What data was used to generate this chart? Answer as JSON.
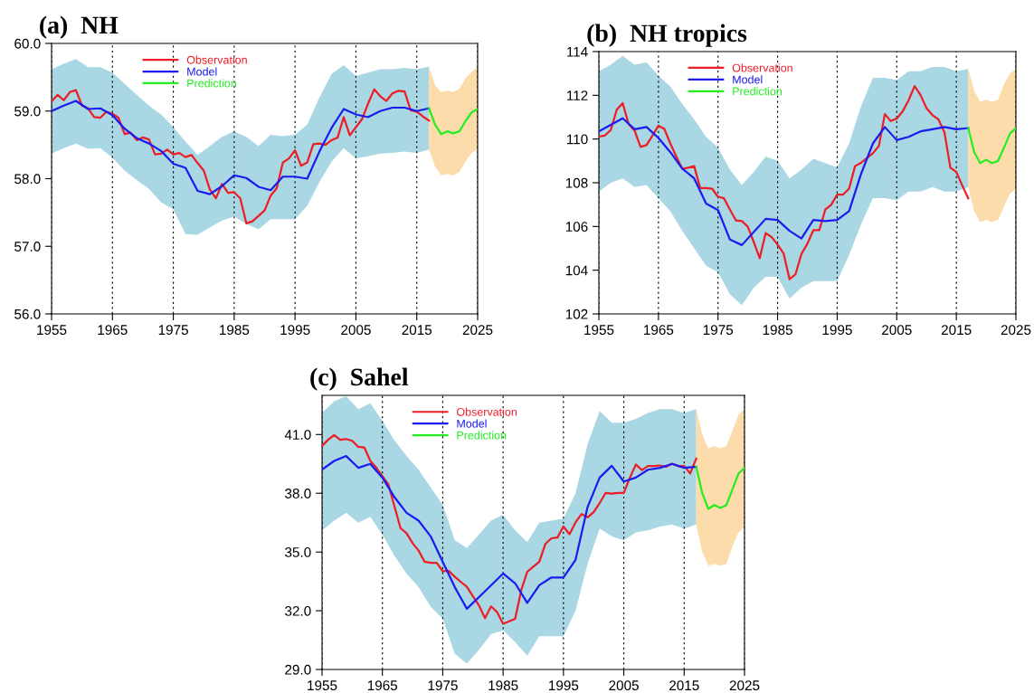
{
  "chart_data": [
    {
      "type": "line",
      "title": "(a)  NH",
      "xlim": [
        1955,
        2025
      ],
      "xticks": [
        1955,
        1965,
        1975,
        1985,
        1995,
        2005,
        2015,
        2025
      ],
      "ylim": [
        56,
        60
      ],
      "yticks": [
        {
          "value": 56,
          "label": "56.0"
        },
        {
          "value": 57,
          "label": "57.0"
        },
        {
          "value": 58,
          "label": "58.0"
        },
        {
          "value": 59,
          "label": "59.0"
        },
        {
          "value": 60,
          "label": "60.0"
        }
      ],
      "grid": "x",
      "legend": "top",
      "line_style": "solid",
      "series": [
        {
          "name": "Observation",
          "color": "#ee1c25",
          "x": [
            1955,
            1956,
            1957,
            1958,
            1959,
            1960,
            1961,
            1962,
            1963,
            1964,
            1965,
            1966,
            1967,
            1968,
            1969,
            1970,
            1971,
            1972,
            1973,
            1974,
            1975,
            1976,
            1977,
            1978,
            1979,
            1980,
            1981,
            1982,
            1983,
            1984,
            1985,
            1986,
            1987,
            1988,
            1989,
            1990,
            1991,
            1992,
            1993,
            1994,
            1995,
            1996,
            1997,
            1998,
            1999,
            2000,
            2001,
            2002,
            2003,
            2004,
            2005,
            2006,
            2007,
            2008,
            2009,
            2010,
            2011,
            2012,
            2013,
            2014,
            2015,
            2016,
            2017
          ],
          "values": [
            59.14,
            59.24,
            59.16,
            59.28,
            59.31,
            59.08,
            59.04,
            58.91,
            58.9,
            58.99,
            58.96,
            58.9,
            58.66,
            58.68,
            58.57,
            58.61,
            58.58,
            58.36,
            58.37,
            58.43,
            58.36,
            58.38,
            58.32,
            58.35,
            58.23,
            58.12,
            57.84,
            57.71,
            57.92,
            57.79,
            57.8,
            57.71,
            57.34,
            57.37,
            57.45,
            57.53,
            57.75,
            57.86,
            58.24,
            58.3,
            58.42,
            58.19,
            58.24,
            58.51,
            58.52,
            58.5,
            58.57,
            58.61,
            58.91,
            58.64,
            58.76,
            58.88,
            59.11,
            59.32,
            59.22,
            59.15,
            59.26,
            59.3,
            59.29,
            59.01,
            58.99,
            58.92,
            58.86
          ]
        },
        {
          "name": "Model",
          "color": "#1b1bf0",
          "x": [
            1955,
            1957,
            1959,
            1961,
            1963,
            1965,
            1967,
            1969,
            1971,
            1973,
            1975,
            1977,
            1979,
            1981,
            1983,
            1985,
            1987,
            1989,
            1991,
            1993,
            1995,
            1997,
            1999,
            2001,
            2003,
            2005,
            2007,
            2009,
            2011,
            2013,
            2015,
            2017
          ],
          "values": [
            59.0,
            59.08,
            59.15,
            59.03,
            59.04,
            58.94,
            58.74,
            58.6,
            58.52,
            58.41,
            58.22,
            58.16,
            57.82,
            57.77,
            57.89,
            58.05,
            58.01,
            57.88,
            57.83,
            58.03,
            58.03,
            58.0,
            58.4,
            58.75,
            59.03,
            58.95,
            58.91,
            59.0,
            59.05,
            59.05,
            59.0,
            59.04
          ],
          "upper": [
            59.62,
            59.7,
            59.77,
            59.65,
            59.65,
            59.57,
            59.4,
            59.24,
            59.08,
            58.95,
            58.76,
            58.55,
            58.35,
            58.48,
            58.62,
            58.7,
            58.62,
            58.48,
            58.65,
            58.63,
            58.65,
            58.8,
            59.2,
            59.55,
            59.68,
            59.52,
            59.57,
            59.62,
            59.62,
            59.64,
            59.62,
            59.66
          ],
          "lower": [
            58.37,
            58.45,
            58.52,
            58.44,
            58.45,
            58.31,
            58.12,
            57.98,
            57.85,
            57.65,
            57.55,
            57.18,
            57.17,
            57.28,
            57.38,
            57.44,
            57.33,
            57.25,
            57.4,
            57.4,
            57.4,
            57.6,
            57.95,
            58.25,
            58.45,
            58.3,
            58.33,
            58.37,
            58.38,
            58.4,
            58.38,
            58.43
          ]
        },
        {
          "name": "Prediction",
          "color": "#22ee22",
          "x": [
            2017,
            2018,
            2019,
            2020,
            2021,
            2022,
            2023,
            2024,
            2025
          ],
          "values": [
            59.04,
            58.8,
            58.66,
            58.7,
            58.67,
            58.7,
            58.85,
            58.98,
            59.03
          ],
          "upper": [
            59.66,
            59.38,
            59.28,
            59.3,
            59.28,
            59.33,
            59.48,
            59.58,
            59.65
          ],
          "lower": [
            58.43,
            58.18,
            58.05,
            58.07,
            58.05,
            58.1,
            58.25,
            58.38,
            58.43
          ]
        }
      ]
    },
    {
      "type": "line",
      "title": "(b)  NH tropics",
      "xlim": [
        1955,
        2025
      ],
      "xticks": [
        1955,
        1965,
        1975,
        1985,
        1995,
        2005,
        2015,
        2025
      ],
      "ylim": [
        102,
        114
      ],
      "yticks": [
        102,
        104,
        106,
        108,
        110,
        112,
        114
      ],
      "grid": "x",
      "legend": "top",
      "line_style": "solid",
      "series": [
        {
          "name": "Observation",
          "color": "#ee1c25",
          "x": [
            1955,
            1956,
            1957,
            1958,
            1959,
            1960,
            1961,
            1962,
            1963,
            1964,
            1965,
            1966,
            1967,
            1968,
            1969,
            1970,
            1971,
            1972,
            1973,
            1974,
            1975,
            1976,
            1977,
            1978,
            1979,
            1980,
            1981,
            1982,
            1983,
            1984,
            1985,
            1986,
            1987,
            1988,
            1989,
            1990,
            1991,
            1992,
            1993,
            1994,
            1995,
            1996,
            1997,
            1998,
            1999,
            2000,
            2001,
            2002,
            2003,
            2004,
            2005,
            2006,
            2007,
            2008,
            2009,
            2010,
            2011,
            2012,
            2013,
            2014,
            2015,
            2016,
            2017
          ],
          "values": [
            110.12,
            110.16,
            110.41,
            111.34,
            111.64,
            110.68,
            110.38,
            109.64,
            109.72,
            110.16,
            110.61,
            110.46,
            109.79,
            109.2,
            108.64,
            108.69,
            108.76,
            107.76,
            107.76,
            107.73,
            107.36,
            107.29,
            106.77,
            106.28,
            106.25,
            105.99,
            105.29,
            104.55,
            105.7,
            105.51,
            105.17,
            104.77,
            103.59,
            103.81,
            104.74,
            105.21,
            105.83,
            105.83,
            106.77,
            106.99,
            107.46,
            107.46,
            107.73,
            108.76,
            108.91,
            109.13,
            109.35,
            109.68,
            111.14,
            110.82,
            110.94,
            111.27,
            111.78,
            112.42,
            112.01,
            111.41,
            111.09,
            110.9,
            110.31,
            108.69,
            108.49,
            107.87,
            107.29
          ]
        },
        {
          "name": "Model",
          "color": "#1b1bf0",
          "x": [
            1955,
            1957,
            1959,
            1961,
            1963,
            1965,
            1967,
            1969,
            1971,
            1973,
            1975,
            1977,
            1979,
            1981,
            1983,
            1985,
            1987,
            1989,
            1991,
            1993,
            1995,
            1997,
            1999,
            2001,
            2003,
            2005,
            2007,
            2009,
            2011,
            2013,
            2015,
            2017
          ],
          "values": [
            110.35,
            110.65,
            110.95,
            110.45,
            110.55,
            110.05,
            109.4,
            108.65,
            108.2,
            107.05,
            106.75,
            105.4,
            105.15,
            105.75,
            106.35,
            106.3,
            105.8,
            105.45,
            106.3,
            106.25,
            106.3,
            106.7,
            108.4,
            109.8,
            110.55,
            109.95,
            110.1,
            110.35,
            110.45,
            110.55,
            110.45,
            110.5
          ],
          "upper": [
            113.1,
            113.4,
            113.8,
            113.4,
            113.5,
            112.9,
            112.4,
            111.6,
            110.9,
            110.1,
            109.6,
            108.6,
            107.9,
            108.5,
            109.2,
            109.0,
            108.2,
            108.6,
            109.1,
            108.9,
            108.7,
            109.8,
            111.5,
            112.8,
            112.8,
            112.7,
            113.1,
            113.1,
            113.3,
            113.3,
            113.1,
            113.2
          ],
          "lower": [
            107.6,
            108.0,
            108.2,
            107.8,
            107.9,
            107.3,
            106.7,
            105.8,
            105.0,
            104.2,
            103.9,
            102.9,
            102.4,
            103.2,
            103.7,
            103.7,
            102.7,
            103.2,
            103.5,
            103.5,
            103.5,
            104.7,
            106.1,
            107.3,
            107.3,
            107.2,
            107.6,
            107.6,
            107.8,
            107.6,
            107.6,
            107.8
          ]
        },
        {
          "name": "Prediction",
          "color": "#22ee22",
          "x": [
            2017,
            2018,
            2019,
            2020,
            2021,
            2022,
            2023,
            2024,
            2025
          ],
          "values": [
            110.5,
            109.4,
            108.9,
            109.05,
            108.9,
            109.0,
            109.6,
            110.25,
            110.5
          ],
          "upper": [
            113.2,
            112.2,
            111.7,
            111.8,
            111.7,
            111.8,
            112.5,
            113.0,
            113.2
          ],
          "lower": [
            107.8,
            106.7,
            106.2,
            106.3,
            106.2,
            106.3,
            106.9,
            107.5,
            107.7
          ]
        }
      ]
    },
    {
      "type": "line",
      "title": "(c)  Sahel",
      "xlim": [
        1955,
        2025
      ],
      "xticks": [
        1955,
        1965,
        1975,
        1985,
        1995,
        2005,
        2015,
        2025
      ],
      "ylim": [
        29,
        43
      ],
      "yticks": [
        {
          "value": 29,
          "label": "29.0"
        },
        {
          "value": 32,
          "label": "32.0"
        },
        {
          "value": 35,
          "label": "35.0"
        },
        {
          "value": 38,
          "label": "38.0"
        },
        {
          "value": 41,
          "label": "41.0"
        }
      ],
      "grid": "x",
      "legend": "top",
      "line_style": "solid",
      "series": [
        {
          "name": "Observation",
          "color": "#ee1c25",
          "x": [
            1955,
            1956,
            1957,
            1958,
            1959,
            1960,
            1961,
            1962,
            1963,
            1964,
            1965,
            1966,
            1967,
            1968,
            1969,
            1970,
            1971,
            1972,
            1973,
            1974,
            1975,
            1976,
            1977,
            1978,
            1979,
            1980,
            1981,
            1982,
            1983,
            1984,
            1985,
            1986,
            1987,
            1988,
            1989,
            1990,
            1991,
            1992,
            1993,
            1994,
            1995,
            1996,
            1997,
            1998,
            1999,
            2000,
            2001,
            2002,
            2003,
            2004,
            2005,
            2006,
            2007,
            2008,
            2009,
            2010,
            2011,
            2012,
            2013,
            2014,
            2015,
            2016,
            2017
          ],
          "values": [
            40.42,
            40.73,
            40.97,
            40.73,
            40.77,
            40.68,
            40.37,
            40.34,
            39.65,
            39.3,
            38.87,
            38.45,
            37.33,
            36.22,
            35.96,
            35.45,
            35.07,
            34.5,
            34.45,
            34.45,
            34.02,
            34.04,
            33.73,
            33.47,
            33.22,
            32.74,
            32.27,
            31.62,
            32.22,
            31.93,
            31.33,
            31.46,
            31.59,
            33.05,
            33.99,
            34.25,
            34.5,
            35.41,
            35.7,
            35.74,
            36.3,
            35.91,
            36.51,
            36.94,
            36.77,
            37.03,
            37.5,
            38.02,
            37.98,
            38.02,
            38.02,
            38.79,
            39.47,
            39.18,
            39.39,
            39.39,
            39.42,
            39.35,
            39.51,
            39.39,
            39.39,
            39.01,
            39.77
          ]
        },
        {
          "name": "Model",
          "color": "#1b1bf0",
          "x": [
            1955,
            1957,
            1959,
            1961,
            1963,
            1965,
            1967,
            1969,
            1971,
            1973,
            1975,
            1977,
            1979,
            1981,
            1983,
            1985,
            1987,
            1989,
            1991,
            1993,
            1995,
            1997,
            1999,
            2001,
            2003,
            2005,
            2007,
            2009,
            2011,
            2013,
            2015,
            2017
          ],
          "values": [
            39.2,
            39.65,
            39.9,
            39.3,
            39.5,
            38.8,
            37.8,
            37.0,
            36.6,
            35.8,
            34.5,
            33.2,
            32.1,
            32.7,
            33.3,
            33.9,
            33.4,
            32.4,
            33.3,
            33.7,
            33.7,
            34.6,
            37.3,
            38.8,
            39.4,
            38.6,
            38.8,
            39.2,
            39.3,
            39.5,
            39.3,
            39.35
          ],
          "upper": [
            42.1,
            42.7,
            42.95,
            42.3,
            42.6,
            41.7,
            40.7,
            39.9,
            39.2,
            38.3,
            37.4,
            35.6,
            35.2,
            35.9,
            36.6,
            36.9,
            36.1,
            35.5,
            36.5,
            36.6,
            36.7,
            38.0,
            40.5,
            42.2,
            41.6,
            41.6,
            41.8,
            42.1,
            42.3,
            42.3,
            42.1,
            42.3
          ],
          "lower": [
            36.1,
            36.6,
            37.0,
            36.5,
            36.8,
            35.9,
            34.8,
            33.9,
            33.2,
            32.2,
            31.6,
            29.8,
            29.3,
            30.0,
            30.8,
            31.0,
            30.4,
            29.7,
            30.7,
            30.7,
            30.7,
            32.0,
            34.4,
            36.2,
            35.8,
            35.6,
            36.0,
            36.1,
            36.3,
            36.4,
            36.2,
            36.4
          ]
        },
        {
          "name": "Prediction",
          "color": "#22ee22",
          "x": [
            2017,
            2018,
            2019,
            2020,
            2021,
            2022,
            2023,
            2024,
            2025
          ],
          "values": [
            39.35,
            38.0,
            37.2,
            37.4,
            37.25,
            37.4,
            38.2,
            39.0,
            39.3
          ],
          "upper": [
            42.3,
            41.0,
            40.3,
            40.4,
            40.3,
            40.4,
            41.2,
            42.0,
            42.3
          ],
          "lower": [
            36.4,
            35.0,
            34.3,
            34.4,
            34.3,
            34.4,
            35.3,
            36.0,
            36.3
          ]
        }
      ]
    }
  ]
}
